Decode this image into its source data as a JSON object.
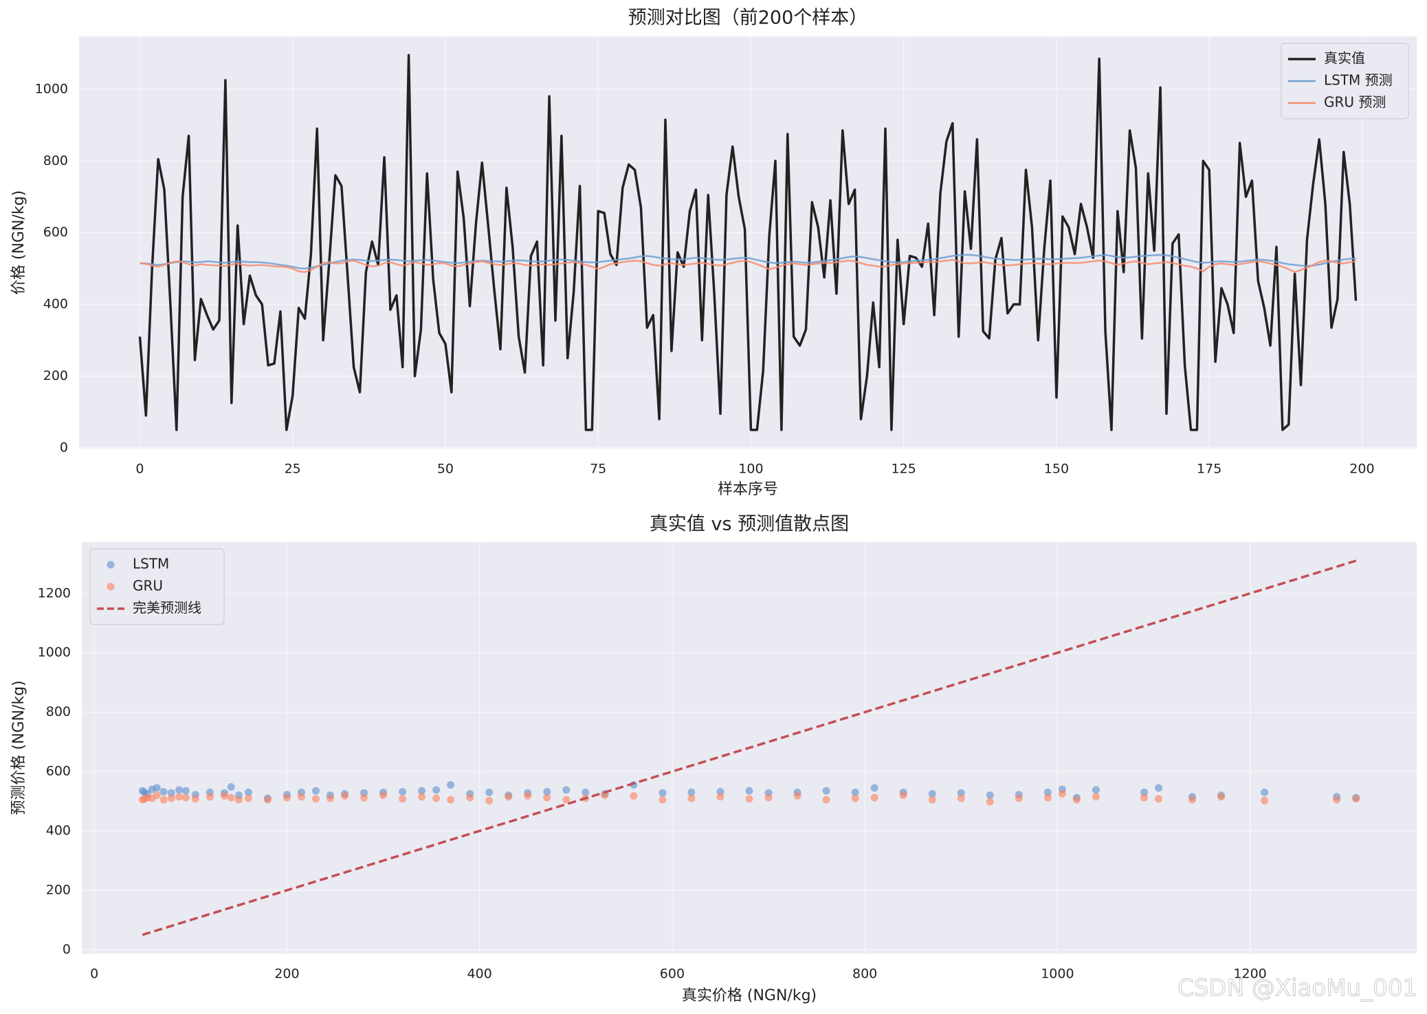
{
  "chart_data": [
    {
      "type": "line",
      "title": "预测对比图（前200个样本）",
      "xlabel": "样本序号",
      "ylabel": "价格 (NGN/kg)",
      "xlim": [
        -9.95,
        208.95
      ],
      "ylim": [
        -2.25,
        1147.25
      ],
      "xticks": [
        0,
        25,
        50,
        75,
        100,
        125,
        150,
        175,
        200
      ],
      "yticks": [
        0,
        200,
        400,
        600,
        800,
        1000
      ],
      "grid": true,
      "legend": "upper right",
      "x": [
        0,
        1,
        2,
        3,
        4,
        5,
        6,
        7,
        8,
        9,
        10,
        11,
        12,
        13,
        14,
        15,
        16,
        17,
        18,
        19,
        20,
        21,
        22,
        23,
        24,
        25,
        26,
        27,
        28,
        29,
        30,
        31,
        32,
        33,
        34,
        35,
        36,
        37,
        38,
        39,
        40,
        41,
        42,
        43,
        44,
        45,
        46,
        47,
        48,
        49,
        50,
        51,
        52,
        53,
        54,
        55,
        56,
        57,
        58,
        59,
        60,
        61,
        62,
        63,
        64,
        65,
        66,
        67,
        68,
        69,
        70,
        71,
        72,
        73,
        74,
        75,
        76,
        77,
        78,
        79,
        80,
        81,
        82,
        83,
        84,
        85,
        86,
        87,
        88,
        89,
        90,
        91,
        92,
        93,
        94,
        95,
        96,
        97,
        98,
        99,
        100,
        101,
        102,
        103,
        104,
        105,
        106,
        107,
        108,
        109,
        110,
        111,
        112,
        113,
        114,
        115,
        116,
        117,
        118,
        119,
        120,
        121,
        122,
        123,
        124,
        125,
        126,
        127,
        128,
        129,
        130,
        131,
        132,
        133,
        134,
        135,
        136,
        137,
        138,
        139,
        140,
        141,
        142,
        143,
        144,
        145,
        146,
        147,
        148,
        149,
        150,
        151,
        152,
        153,
        154,
        155,
        156,
        157,
        158,
        159,
        160,
        161,
        162,
        163,
        164,
        165,
        166,
        167,
        168,
        169,
        170,
        171,
        172,
        173,
        174,
        175,
        176,
        177,
        178,
        179,
        180,
        181,
        182,
        183,
        184,
        185,
        186,
        187,
        188,
        189,
        190,
        191,
        192,
        193,
        194,
        195,
        196,
        197,
        198,
        199
      ],
      "series": [
        {
          "name": "真实值",
          "color": "#222222",
          "width": 3.5,
          "values": [
            310,
            90,
            500,
            805,
            720,
            400,
            50,
            700,
            870,
            245,
            415,
            370,
            330,
            355,
            1025,
            125,
            620,
            345,
            480,
            425,
            400,
            230,
            235,
            380,
            50,
            145,
            390,
            360,
            540,
            890,
            300,
            520,
            760,
            730,
            480,
            225,
            155,
            490,
            575,
            510,
            810,
            385,
            425,
            225,
            1095,
            200,
            330,
            765,
            470,
            320,
            290,
            155,
            770,
            640,
            395,
            625,
            795,
            620,
            440,
            275,
            725,
            560,
            310,
            210,
            535,
            575,
            230,
            980,
            355,
            870,
            250,
            435,
            730,
            50,
            50,
            660,
            655,
            540,
            510,
            725,
            790,
            775,
            670,
            335,
            370,
            80,
            915,
            270,
            545,
            505,
            660,
            720,
            300,
            705,
            430,
            95,
            705,
            840,
            700,
            610,
            50,
            50,
            215,
            590,
            800,
            50,
            875,
            310,
            285,
            330,
            685,
            615,
            475,
            690,
            430,
            885,
            680,
            720,
            80,
            200,
            405,
            225,
            890,
            50,
            580,
            345,
            535,
            530,
            505,
            625,
            370,
            710,
            855,
            905,
            310,
            715,
            555,
            860,
            325,
            305,
            525,
            585,
            375,
            400,
            400,
            775,
            615,
            300,
            555,
            745,
            140,
            645,
            615,
            540,
            680,
            615,
            530,
            1085,
            325,
            50,
            660,
            490,
            885,
            780,
            305,
            765,
            550,
            1005,
            95,
            570,
            595,
            230,
            50,
            50,
            800,
            775,
            240,
            445,
            400,
            320,
            850,
            700,
            745,
            465,
            390,
            285,
            560,
            50,
            65,
            485,
            175,
            580,
            735,
            860,
            680,
            335,
            415,
            825,
            680,
            410
          ]
        },
        {
          "name": "LSTM 预测",
          "color": "#6f9fd2",
          "width": 2.5,
          "values": [
            515,
            514,
            512,
            510,
            512,
            515,
            518,
            520,
            519,
            517,
            518,
            520,
            519,
            517,
            516,
            518,
            520,
            519,
            518,
            518,
            517,
            515,
            513,
            510,
            508,
            505,
            501,
            500,
            502,
            506,
            510,
            514,
            518,
            522,
            524,
            525,
            524,
            522,
            521,
            522,
            524,
            525,
            524,
            522,
            520,
            522,
            523,
            524,
            522,
            520,
            518,
            516,
            515,
            517,
            519,
            521,
            522,
            521,
            520,
            519,
            520,
            522,
            523,
            522,
            520,
            519,
            520,
            522,
            524,
            525,
            524,
            522,
            520,
            518,
            517,
            518,
            520,
            522,
            524,
            526,
            528,
            531,
            534,
            535,
            533,
            530,
            528,
            526,
            525,
            526,
            528,
            530,
            529,
            527,
            525,
            524,
            525,
            527,
            529,
            530,
            528,
            524,
            520,
            517,
            515,
            516,
            518,
            519,
            518,
            516,
            517,
            519,
            521,
            523,
            526,
            529,
            532,
            534,
            532,
            529,
            526,
            523,
            520,
            518,
            517,
            518,
            520,
            522,
            523,
            524,
            526,
            529,
            532,
            535,
            537,
            538,
            538,
            536,
            533,
            530,
            528,
            526,
            525,
            524,
            524,
            525,
            526,
            527,
            527,
            526,
            526,
            527,
            528,
            529,
            530,
            532,
            534,
            536,
            538,
            535,
            532,
            530,
            531,
            533,
            535,
            536,
            537,
            538,
            537,
            534,
            530,
            526,
            522,
            518,
            516,
            517,
            519,
            520,
            519,
            518,
            519,
            521,
            523,
            525,
            524,
            522,
            519,
            515,
            512,
            510,
            508,
            507,
            508,
            511,
            515,
            519,
            522,
            525,
            527,
            528
          ]
        },
        {
          "name": "GRU 预测",
          "color": "#f88c6c",
          "width": 2.5,
          "values": [
            515,
            513,
            508,
            505,
            510,
            516,
            520,
            518,
            512,
            508,
            512,
            510,
            509,
            508,
            507,
            511,
            514,
            510,
            508,
            509,
            510,
            508,
            506,
            505,
            504,
            500,
            492,
            490,
            496,
            505,
            515,
            518,
            514,
            515,
            520,
            522,
            516,
            510,
            506,
            508,
            515,
            518,
            512,
            508,
            512,
            518,
            514,
            510,
            512,
            515,
            514,
            508,
            506,
            510,
            514,
            518,
            520,
            516,
            512,
            510,
            512,
            515,
            514,
            510,
            508,
            510,
            512,
            510,
            512,
            514,
            516,
            518,
            515,
            510,
            505,
            498,
            505,
            512,
            515,
            518,
            520,
            522,
            520,
            515,
            510,
            508,
            512,
            515,
            512,
            510,
            512,
            514,
            516,
            513,
            510,
            508,
            512,
            516,
            520,
            522,
            518,
            512,
            505,
            498,
            502,
            508,
            512,
            514,
            512,
            510,
            512,
            514,
            516,
            515,
            518,
            520,
            522,
            520,
            515,
            510,
            508,
            505,
            506,
            510,
            512,
            514,
            515,
            516,
            517,
            518,
            518,
            520,
            522,
            524,
            520,
            515,
            514,
            516,
            518,
            515,
            512,
            510,
            508,
            510,
            512,
            514,
            515,
            514,
            512,
            512,
            514,
            515,
            516,
            515,
            516,
            518,
            520,
            522,
            520,
            515,
            510,
            514,
            518,
            520,
            516,
            512,
            514,
            516,
            518,
            515,
            512,
            508,
            505,
            500,
            492,
            505,
            512,
            514,
            512,
            510,
            512,
            515,
            518,
            520,
            518,
            514,
            510,
            505,
            498,
            490,
            496,
            502,
            510,
            518,
            522,
            520,
            516,
            514,
            518,
            520
          ]
        }
      ]
    },
    {
      "type": "scatter",
      "title": "真实值 vs 预测值散点图",
      "xlabel": "真实价格 (NGN/kg)",
      "ylabel": "预测价格 (NGN/kg)",
      "xlim": [
        -13,
        1373
      ],
      "ylim": [
        -13,
        1373
      ],
      "xticks": [
        0,
        200,
        400,
        600,
        800,
        1000,
        1200
      ],
      "yticks": [
        0,
        200,
        400,
        600,
        800,
        1000,
        1200
      ],
      "grid": true,
      "legend": "upper left",
      "x": [
        50,
        52,
        55,
        60,
        65,
        72,
        80,
        88,
        95,
        105,
        120,
        135,
        142,
        150,
        160,
        180,
        200,
        215,
        230,
        245,
        260,
        280,
        300,
        320,
        340,
        355,
        370,
        390,
        410,
        430,
        450,
        470,
        490,
        510,
        530,
        560,
        590,
        620,
        650,
        680,
        700,
        730,
        760,
        790,
        810,
        840,
        870,
        900,
        930,
        960,
        990,
        1005,
        1020,
        1040,
        1090,
        1105,
        1140,
        1170,
        1215,
        1290,
        1310
      ],
      "series": [
        {
          "name": "LSTM",
          "color": "#5b8fcc",
          "values": [
            535,
            530,
            525,
            540,
            545,
            532,
            528,
            538,
            535,
            522,
            530,
            528,
            548,
            520,
            530,
            510,
            522,
            530,
            535,
            520,
            525,
            528,
            530,
            532,
            535,
            538,
            555,
            525,
            530,
            520,
            528,
            532,
            538,
            530,
            525,
            555,
            528,
            530,
            532,
            535,
            528,
            530,
            535,
            530,
            545,
            530,
            525,
            528,
            520,
            522,
            530,
            540,
            512,
            538,
            530,
            545,
            515,
            520,
            530,
            515,
            512
          ]
        },
        {
          "name": "GRU",
          "color": "#fb8058",
          "values": [
            505,
            508,
            512,
            510,
            520,
            505,
            510,
            515,
            512,
            508,
            515,
            518,
            512,
            505,
            510,
            505,
            512,
            515,
            508,
            510,
            518,
            512,
            520,
            508,
            515,
            510,
            505,
            512,
            502,
            515,
            518,
            512,
            505,
            510,
            520,
            518,
            505,
            510,
            515,
            508,
            512,
            518,
            505,
            510,
            512,
            520,
            505,
            510,
            498,
            510,
            512,
            525,
            505,
            515,
            512,
            508,
            505,
            515,
            502,
            505,
            508
          ]
        },
        {
          "name": "完美预测线",
          "type": "line",
          "color": "#c44e52",
          "width": 3.5,
          "dashed": true,
          "x": [
            50,
            1310
          ],
          "values": [
            50,
            1310
          ]
        }
      ]
    }
  ],
  "watermark": "CSDN @XiaoMu_001"
}
